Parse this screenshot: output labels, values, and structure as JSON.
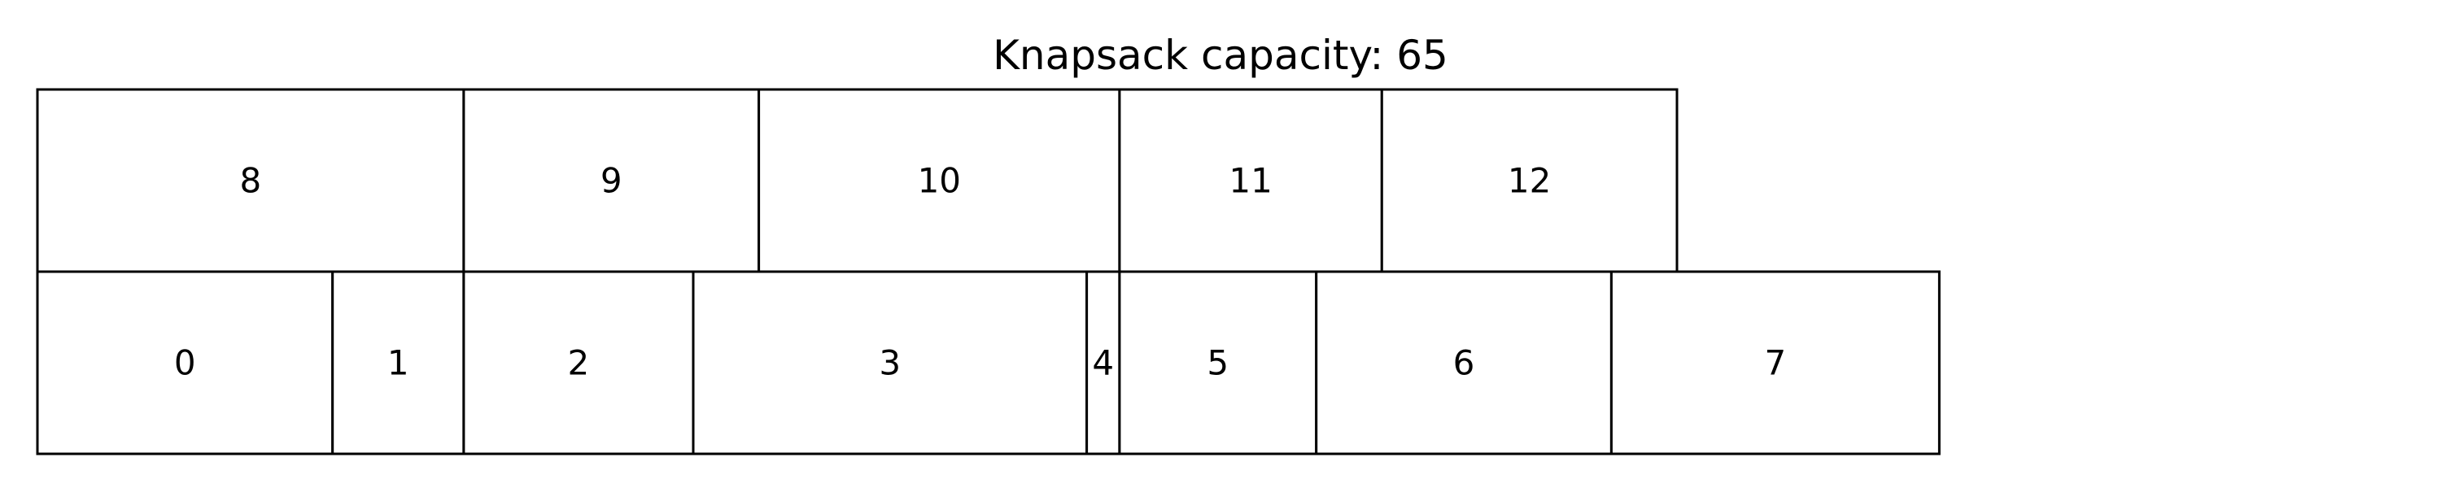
{
  "title": "Knapsack capacity: 65",
  "rows": [
    {
      "row": "bottom",
      "items": [
        {
          "label": "0",
          "size": 9
        },
        {
          "label": "1",
          "size": 4
        },
        {
          "label": "2",
          "size": 7
        },
        {
          "label": "3",
          "size": 12
        },
        {
          "label": "4",
          "size": 1
        },
        {
          "label": "5",
          "size": 6
        },
        {
          "label": "6",
          "size": 9
        },
        {
          "label": "7",
          "size": 10
        }
      ]
    },
    {
      "row": "top",
      "items": [
        {
          "label": "8",
          "size": 13
        },
        {
          "label": "9",
          "size": 9
        },
        {
          "label": "10",
          "size": 11
        },
        {
          "label": "11",
          "size": 8
        },
        {
          "label": "12",
          "size": 9
        }
      ]
    }
  ]
}
